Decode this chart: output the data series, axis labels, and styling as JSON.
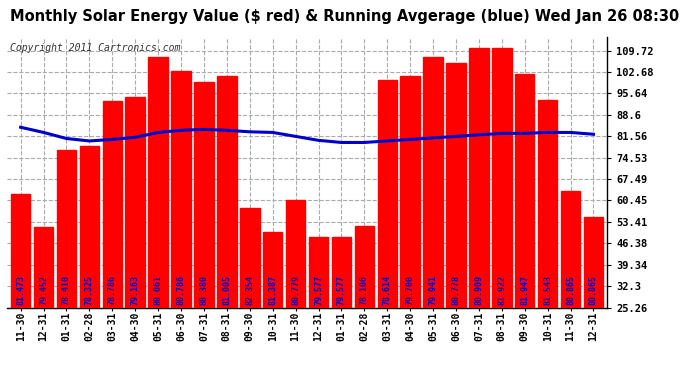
{
  "title": "Monthly Solar Energy Value ($ red) & Running Avgerage (blue) Wed Jan 26 08:30",
  "copyright": "Copyright 2011 Cartronics.com",
  "bar_color": "#ff0000",
  "line_color": "#0000cc",
  "background_color": "#ffffff",
  "plot_bg_color": "#ffffff",
  "grid_color": "#aaaaaa",
  "categories": [
    "11-30",
    "12-31",
    "01-31",
    "02-28",
    "03-31",
    "04-30",
    "05-31",
    "06-30",
    "07-31",
    "08-31",
    "09-30",
    "10-31",
    "11-30",
    "12-31",
    "01-31",
    "02-28",
    "03-31",
    "04-30",
    "05-31",
    "06-30",
    "07-31",
    "08-31",
    "09-30",
    "10-31",
    "11-30",
    "12-31"
  ],
  "bar_top_values": [
    62.5,
    51.8,
    77.0,
    78.5,
    93.0,
    94.5,
    107.5,
    103.0,
    99.5,
    101.5,
    58.0,
    50.0,
    60.5,
    48.5,
    48.5,
    52.0,
    100.0,
    101.5,
    107.5,
    105.5,
    110.5,
    110.5,
    102.0,
    93.5,
    63.5,
    55.0
  ],
  "bar_labels": [
    "81.473",
    "79.452",
    "78.410",
    "78.325",
    "78.786",
    "79.163",
    "80.061",
    "80.786",
    "80.380",
    "81.005",
    "82.354",
    "81.387",
    "80.779",
    "79.577",
    "79.577",
    "78.106",
    "78.614",
    "79.700",
    "79.941",
    "80.778",
    "80.909",
    "81.922",
    "81.947",
    "81.543",
    "80.865",
    "80.865"
  ],
  "running_avg": [
    84.5,
    82.8,
    80.8,
    80.0,
    80.5,
    81.2,
    82.8,
    83.5,
    83.8,
    83.5,
    83.0,
    82.8,
    81.5,
    80.2,
    79.5,
    79.5,
    80.0,
    80.5,
    81.0,
    81.5,
    82.0,
    82.5,
    82.5,
    82.8,
    82.8,
    82.2
  ],
  "ytick_values": [
    25.26,
    32.3,
    39.34,
    46.38,
    53.41,
    60.45,
    67.49,
    74.53,
    81.56,
    88.6,
    95.64,
    102.68,
    109.72
  ],
  "ylim_min": 25.26,
  "ylim_max": 114.0,
  "label_color": "#0000cc",
  "title_fontsize": 10.5,
  "copyright_fontsize": 7,
  "bar_label_fontsize": 6.0,
  "tick_label_fontsize": 7.0
}
